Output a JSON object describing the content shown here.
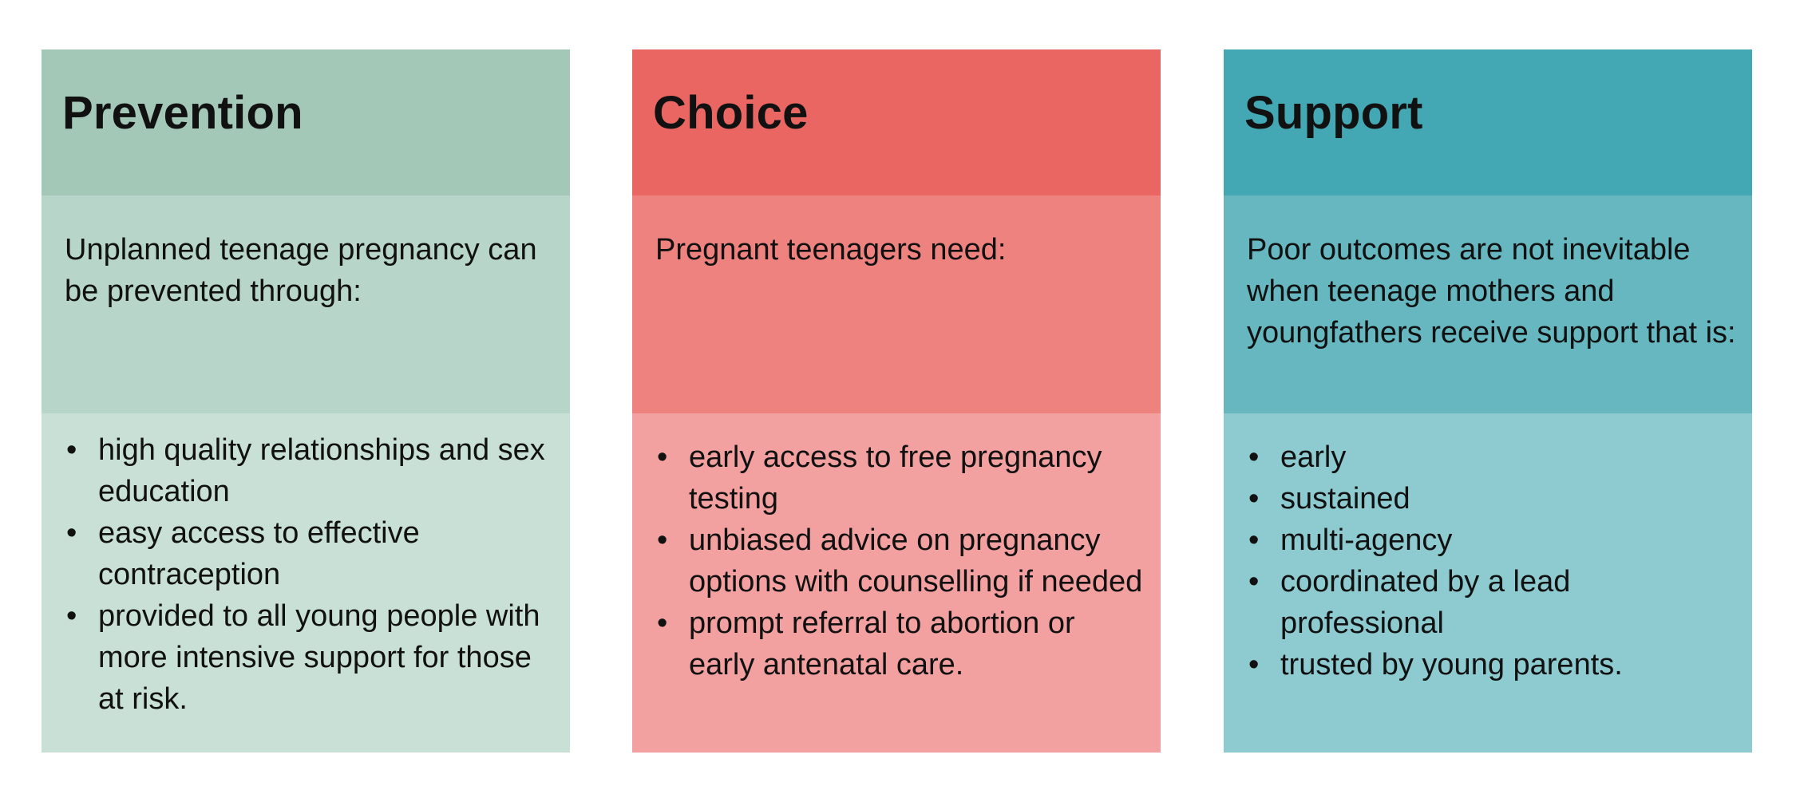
{
  "columns": [
    {
      "title": "Prevention",
      "intro": "Unplanned teenage pregnancy can be prevented through:",
      "bullets": [
        "high quality relationships and sex education",
        "easy access to effective contraception",
        "provided to all young people with more intensive support for those at risk."
      ],
      "colors": {
        "header": "#a3c8b8",
        "intro": "#b7d5c8",
        "bullets": "#c9e0d6"
      }
    },
    {
      "title": "Choice",
      "intro": "Pregnant teenagers need:",
      "bullets": [
        "early access to free pregnancy testing",
        "unbiased advice on pregnancy options with counselling if needed",
        "prompt referral to abortion or early antenatal care."
      ],
      "colors": {
        "header": "#ea6662",
        "intro": "#ee827f",
        "bullets": "#f3a0a0"
      }
    },
    {
      "title": "Support",
      "intro": "Poor outcomes are not inevitable when teenage mothers and youngfathers receive support that is:",
      "bullets": [
        "early",
        "sustained",
        "multi-agency",
        "coordinated by a lead professional",
        "trusted by young parents."
      ],
      "colors": {
        "header": "#43a8b4",
        "intro": "#66b7bf",
        "bullets": "#8ecbd1"
      }
    }
  ]
}
